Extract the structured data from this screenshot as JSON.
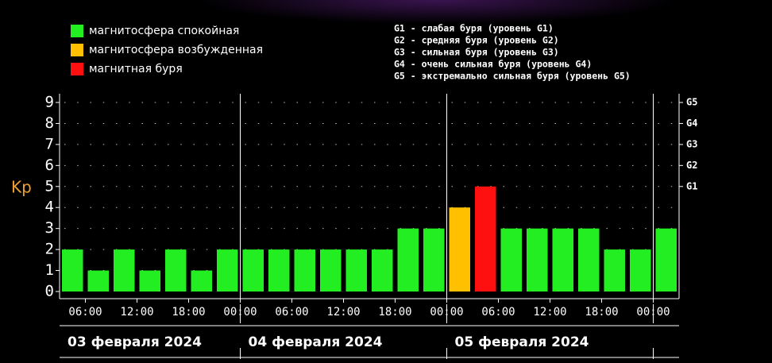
{
  "chart_data": {
    "type": "bar",
    "ylabel": "Kp",
    "legend": [
      {
        "name": "магнитосфера спокойная",
        "color": "#22ee22"
      },
      {
        "name": "магнитосфера возбужденная",
        "color": "#ffc000"
      },
      {
        "name": "магнитная буря",
        "color": "#ff1010"
      }
    ],
    "annotations": [
      "G1 - слабая буря (уровень G1)",
      "G2 - средняя буря (уровень G2)",
      "G3 - сильная буря (уровень G3)",
      "G4 - очень сильная буря (уровень G4)",
      "G5 - экстремально сильная буря (уровень G5)"
    ],
    "values": [
      2,
      1,
      2,
      1,
      2,
      1,
      2,
      2,
      2,
      2,
      2,
      2,
      2,
      3,
      3,
      4,
      5,
      3,
      3,
      3,
      3,
      2,
      2,
      3
    ],
    "colors": [
      "#22ee22",
      "#22ee22",
      "#22ee22",
      "#22ee22",
      "#22ee22",
      "#22ee22",
      "#22ee22",
      "#22ee22",
      "#22ee22",
      "#22ee22",
      "#22ee22",
      "#22ee22",
      "#22ee22",
      "#22ee22",
      "#22ee22",
      "#ffc000",
      "#ff1010",
      "#22ee22",
      "#22ee22",
      "#22ee22",
      "#22ee22",
      "#22ee22",
      "#22ee22",
      "#22ee22"
    ],
    "x_labels": [
      "06:00",
      "12:00",
      "18:00",
      "00:00",
      "06:00",
      "12:00",
      "18:00",
      "00:00",
      "06:00",
      "12:00",
      "18:00",
      "00:00"
    ],
    "days": [
      "03 февраля 2024",
      "04 февраля 2024",
      "05 февраля 2024"
    ],
    "ylim": [
      0,
      9
    ],
    "yticks": [
      0,
      1,
      2,
      3,
      4,
      5,
      6,
      7,
      8,
      9
    ],
    "y2ticks": [
      {
        "value": 5,
        "label": "G1"
      },
      {
        "value": 6,
        "label": "G2"
      },
      {
        "value": 7,
        "label": "G3"
      },
      {
        "value": 8,
        "label": "G4"
      },
      {
        "value": 9,
        "label": "G5"
      }
    ],
    "grid": true
  }
}
